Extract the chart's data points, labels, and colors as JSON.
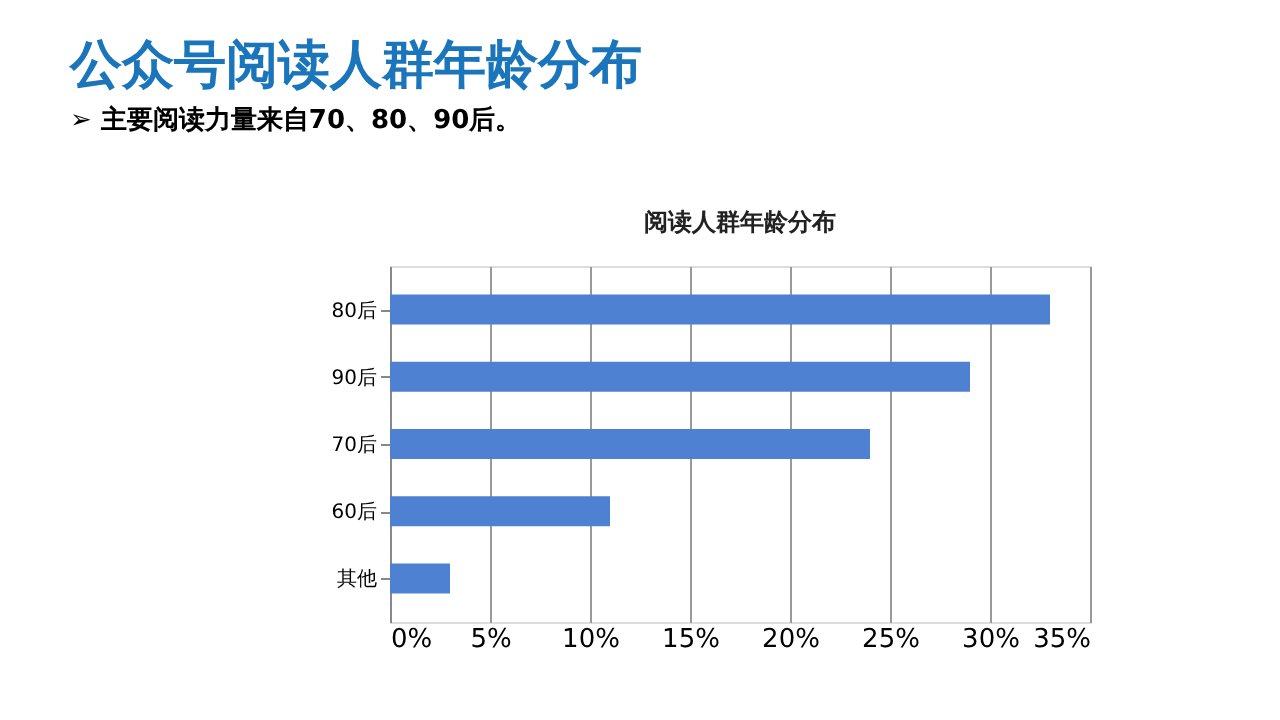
{
  "chart_data": {
    "type": "bar",
    "orientation": "horizontal",
    "title": "公众号阅读人群年龄分布",
    "subtitle": "➢  主要阅读力量来自70、80、90后。",
    "annotations": [
      "阅读人群年龄分布"
    ],
    "categories": [
      "80后",
      "90后",
      "70后",
      "60后",
      "其他"
    ],
    "values": [
      33,
      29,
      24,
      11,
      3
    ],
    "color": "#4f81d2",
    "xlim": [
      0,
      35
    ],
    "xticks": [
      {
        "value": 0,
        "label": "0%"
      },
      {
        "value": 5,
        "label": "5%"
      },
      {
        "value": 10,
        "label": "10%"
      },
      {
        "value": 15,
        "label": "15%"
      },
      {
        "value": 20,
        "label": "20%"
      },
      {
        "value": 25,
        "label": "25%"
      },
      {
        "value": 30,
        "label": "30%"
      },
      {
        "value": 35,
        "label": "35%"
      }
    ],
    "grid": "x"
  }
}
